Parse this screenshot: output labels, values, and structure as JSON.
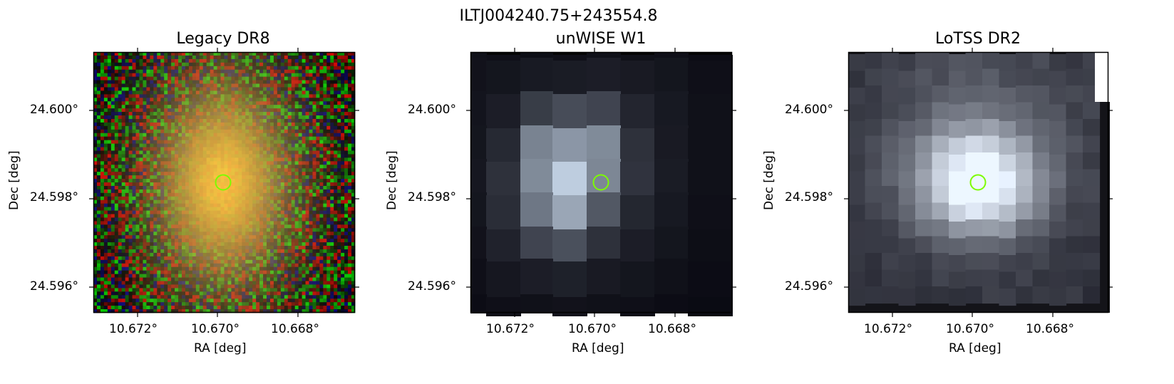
{
  "figure": {
    "suptitle": "ILTJ004240.75+243554.8",
    "colors": {
      "marker": "#7CFC00",
      "frame": "#000000",
      "legacy_core": "#f0b24a",
      "legacy_halo": "#9aa56a",
      "unwise_peak": "#ffffff",
      "lotss_peak": "#f2f7f7"
    },
    "marker_icon": "circle-icon",
    "panels": [
      {
        "title": "Legacy DR8",
        "xlabel": "RA [deg]",
        "ylabel": "Dec [deg]",
        "xticks": [
          "10.672°",
          "10.670°",
          "10.668°"
        ],
        "yticks": [
          "24.600°",
          "24.598°",
          "24.596°"
        ]
      },
      {
        "title": "unWISE W1",
        "xlabel": "RA [deg]",
        "ylabel": "Dec [deg]",
        "xticks": [
          "10.672°",
          "10.670°",
          "10.668°"
        ],
        "yticks": [
          "24.600°",
          "24.598°",
          "24.596°"
        ]
      },
      {
        "title": "LoTSS DR2",
        "xlabel": "RA [deg]",
        "ylabel": "Dec [deg]",
        "xticks": [
          "10.672°",
          "10.670°",
          "10.668°"
        ],
        "yticks": [
          "24.600°",
          "24.598°",
          "24.596°"
        ]
      }
    ]
  }
}
